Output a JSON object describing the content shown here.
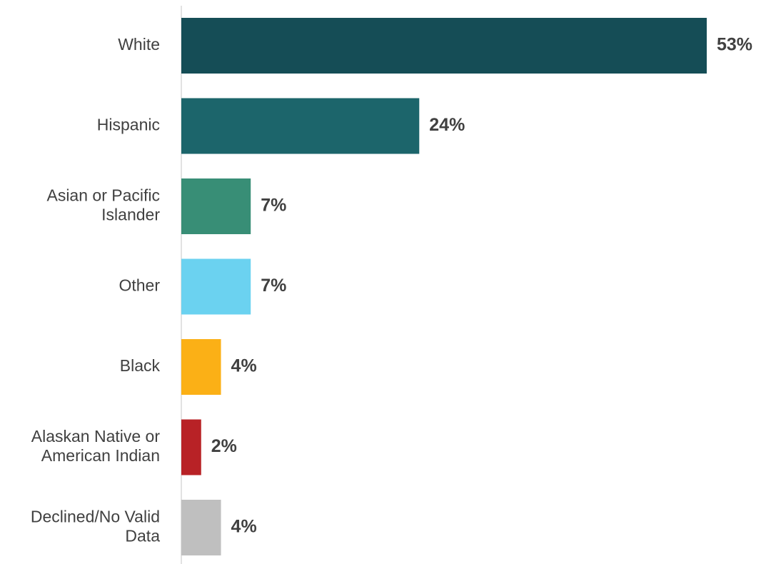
{
  "chart_data": {
    "type": "bar",
    "orientation": "horizontal",
    "categories": [
      "White",
      "Hispanic",
      "Asian or Pacific Islander",
      "Other",
      "Black",
      "Alaskan Native or American Indian",
      "Declined/No Valid Data"
    ],
    "category_lines": [
      [
        "White"
      ],
      [
        "Hispanic"
      ],
      [
        "Asian or Pacific",
        "Islander"
      ],
      [
        "Other"
      ],
      [
        "Black"
      ],
      [
        "Alaskan Native or",
        "American Indian"
      ],
      [
        "Declined/No Valid",
        "Data"
      ]
    ],
    "values": [
      53,
      24,
      7,
      7,
      4,
      2,
      4
    ],
    "value_labels": [
      "53%",
      "24%",
      "7%",
      "7%",
      "4%",
      "2%",
      "4%"
    ],
    "colors": [
      "#154d56",
      "#1c656b",
      "#388e76",
      "#6bd2f0",
      "#fbb016",
      "#b82226",
      "#bfbfbf"
    ],
    "title": "",
    "xlabel": "",
    "ylabel": "",
    "xlim": [
      0,
      53
    ],
    "grid": false,
    "legend": "none",
    "axis_color": "#d9d9d9"
  }
}
